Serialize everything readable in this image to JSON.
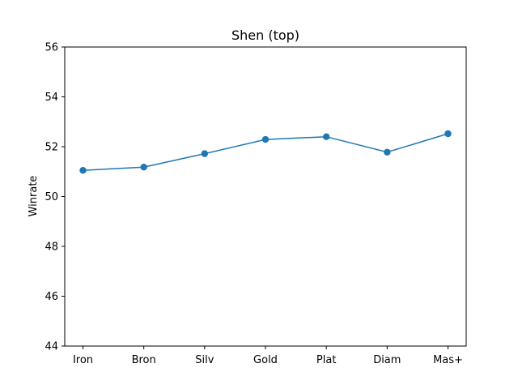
{
  "chart_data": {
    "type": "line",
    "title": "Shen (top)",
    "xlabel": "",
    "ylabel": "Winrate",
    "categories": [
      "Iron",
      "Bron",
      "Silv",
      "Gold",
      "Plat",
      "Diam",
      "Mas+"
    ],
    "series": [
      {
        "values": [
          51.05,
          51.18,
          51.72,
          52.29,
          52.4,
          51.78,
          52.52
        ]
      }
    ],
    "ylim": [
      44,
      56
    ],
    "yticks": [
      "44",
      "46",
      "48",
      "50",
      "52",
      "54",
      "56"
    ],
    "grid": false,
    "colors": {
      "series": "#1f77b4",
      "axes": "#000000"
    }
  }
}
